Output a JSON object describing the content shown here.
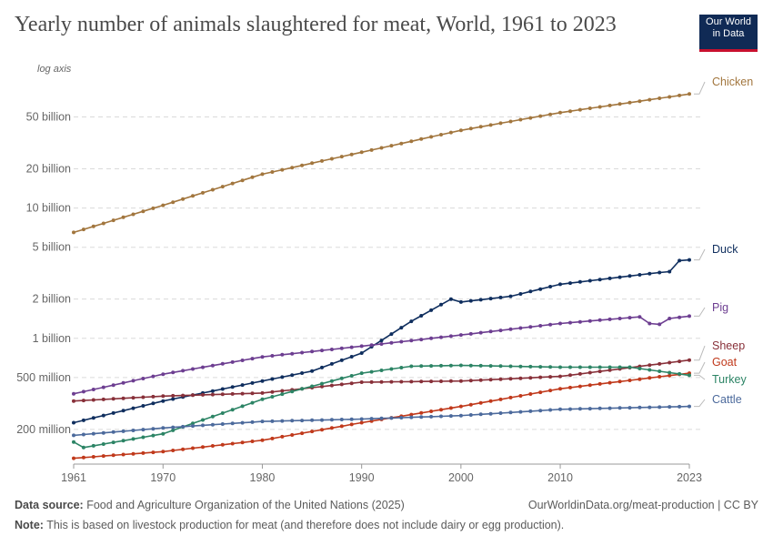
{
  "header": {
    "title": "Yearly number of animals slaughtered for meat, World, 1961 to 2023",
    "logo_line1": "Our World",
    "logo_line2": "in Data"
  },
  "footer": {
    "source_label": "Data source:",
    "source_text": "Food and Agriculture Organization of the United Nations (2025)",
    "link": "OurWorldinData.org/meat-production | CC BY",
    "note_label": "Note:",
    "note_text": "This is based on livestock production for meat (and therefore does not include dairy or egg production)."
  },
  "chart_data": {
    "type": "line",
    "title": "Yearly number of animals slaughtered for meat, World, 1961 to 2023",
    "axis_note": "log axis",
    "yscale": "log",
    "xlim": [
      1961,
      2023
    ],
    "ylim": [
      110000000,
      90000000000
    ],
    "x_ticks": [
      1961,
      1970,
      1980,
      1990,
      2000,
      2010,
      2023
    ],
    "y_ticks": [
      {
        "value": 200000000,
        "label": "200 million"
      },
      {
        "value": 500000000,
        "label": "500 million"
      },
      {
        "value": 1000000000,
        "label": "1 billion"
      },
      {
        "value": 2000000000,
        "label": "2 billion"
      },
      {
        "value": 5000000000,
        "label": "5 billion"
      },
      {
        "value": 10000000000,
        "label": "10 billion"
      },
      {
        "value": 20000000000,
        "label": "20 billion"
      },
      {
        "value": 50000000000,
        "label": "50 billion"
      }
    ],
    "series": [
      {
        "name": "Chicken",
        "color": "#a2763e",
        "anchors": [
          [
            1961,
            6500000000
          ],
          [
            1970,
            10500000000
          ],
          [
            1980,
            18200000000
          ],
          [
            1990,
            26800000000
          ],
          [
            2000,
            39500000000
          ],
          [
            2010,
            54000000000
          ],
          [
            2023,
            75000000000
          ]
        ]
      },
      {
        "name": "Duck",
        "color": "#0f2e5e",
        "anchors": [
          [
            1961,
            225000000
          ],
          [
            1970,
            330000000
          ],
          [
            1980,
            470000000
          ],
          [
            1985,
            560000000
          ],
          [
            1990,
            770000000
          ],
          [
            1995,
            1350000000
          ],
          [
            1999,
            2000000000
          ],
          [
            2000,
            1900000000
          ],
          [
            2005,
            2100000000
          ],
          [
            2010,
            2600000000
          ],
          [
            2020,
            3200000000
          ],
          [
            2021,
            3250000000
          ],
          [
            2022,
            3950000000
          ],
          [
            2023,
            4000000000
          ]
        ]
      },
      {
        "name": "Pig",
        "color": "#6d3e91",
        "anchors": [
          [
            1961,
            375000000
          ],
          [
            1970,
            530000000
          ],
          [
            1980,
            720000000
          ],
          [
            1990,
            870000000
          ],
          [
            2000,
            1060000000
          ],
          [
            2010,
            1300000000
          ],
          [
            2018,
            1460000000
          ],
          [
            2019,
            1300000000
          ],
          [
            2020,
            1280000000
          ],
          [
            2021,
            1420000000
          ],
          [
            2023,
            1480000000
          ]
        ]
      },
      {
        "name": "Sheep",
        "color": "#883039",
        "anchors": [
          [
            1961,
            330000000
          ],
          [
            1970,
            360000000
          ],
          [
            1980,
            380000000
          ],
          [
            1990,
            460000000
          ],
          [
            2000,
            470000000
          ],
          [
            2010,
            510000000
          ],
          [
            2023,
            680000000
          ]
        ]
      },
      {
        "name": "Goat",
        "color": "#c0391b",
        "anchors": [
          [
            1961,
            120000000
          ],
          [
            1970,
            135000000
          ],
          [
            1980,
            165000000
          ],
          [
            1990,
            225000000
          ],
          [
            2000,
            300000000
          ],
          [
            2010,
            410000000
          ],
          [
            2023,
            540000000
          ]
        ]
      },
      {
        "name": "Turkey",
        "color": "#2c8465",
        "anchors": [
          [
            1961,
            160000000
          ],
          [
            1962,
            145000000
          ],
          [
            1970,
            185000000
          ],
          [
            1980,
            340000000
          ],
          [
            1990,
            540000000
          ],
          [
            1995,
            610000000
          ],
          [
            2000,
            620000000
          ],
          [
            2010,
            600000000
          ],
          [
            2017,
            600000000
          ],
          [
            2023,
            520000000
          ]
        ]
      },
      {
        "name": "Cattle",
        "color": "#4c6a9c",
        "anchors": [
          [
            1961,
            180000000
          ],
          [
            1970,
            205000000
          ],
          [
            1980,
            230000000
          ],
          [
            1990,
            240000000
          ],
          [
            2000,
            255000000
          ],
          [
            2010,
            285000000
          ],
          [
            2023,
            300000000
          ]
        ]
      }
    ]
  }
}
